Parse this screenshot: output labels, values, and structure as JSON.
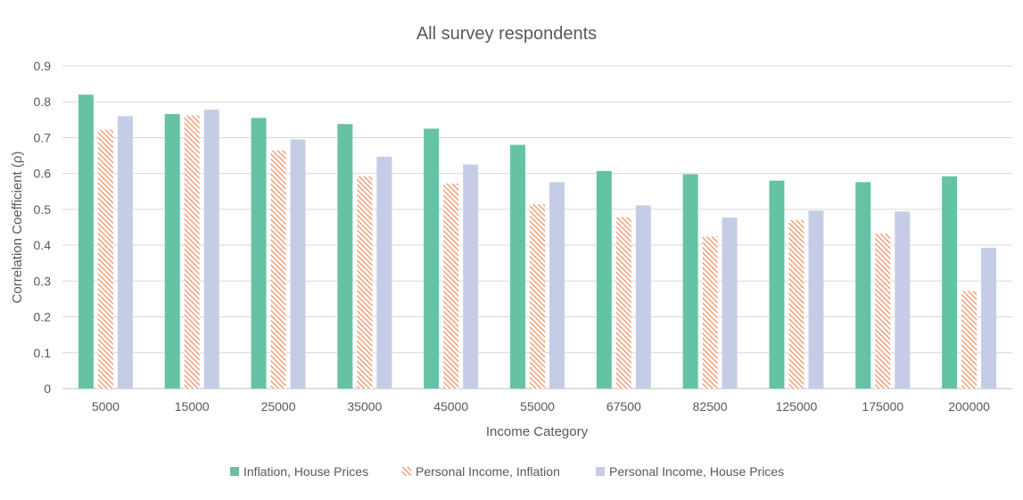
{
  "chart_data": {
    "type": "bar",
    "title": "All survey respondents",
    "xlabel": "Income Category",
    "ylabel": "Correlation Coefficient (ρ)",
    "ylim": [
      0,
      0.9
    ],
    "yticks": [
      "0",
      "0.1",
      "0.2",
      "0.3",
      "0.4",
      "0.5",
      "0.6",
      "0.7",
      "0.8",
      "0.9"
    ],
    "grid": true,
    "legend_position": "bottom",
    "categories": [
      "5000",
      "15000",
      "25000",
      "35000",
      "45000",
      "55000",
      "67500",
      "82500",
      "125000",
      "175000",
      "200000"
    ],
    "series": [
      {
        "name": "Inflation, House Prices",
        "color": "#66c2a5",
        "pattern": "solid",
        "values": [
          0.82,
          0.766,
          0.755,
          0.738,
          0.725,
          0.68,
          0.607,
          0.598,
          0.58,
          0.576,
          0.592
        ]
      },
      {
        "name": "Personal Income, Inflation",
        "color": "#f08a5d",
        "pattern": "hatch",
        "values": [
          0.722,
          0.762,
          0.664,
          0.592,
          0.572,
          0.514,
          0.478,
          0.424,
          0.47,
          0.432,
          0.272
        ]
      },
      {
        "name": "Personal Income, House Prices",
        "color": "#c5cde6",
        "pattern": "solid",
        "values": [
          0.76,
          0.778,
          0.695,
          0.647,
          0.625,
          0.576,
          0.511,
          0.477,
          0.496,
          0.494,
          0.393
        ]
      }
    ]
  }
}
